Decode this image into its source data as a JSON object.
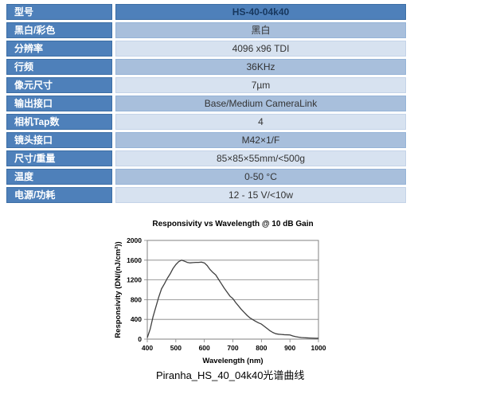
{
  "table": {
    "rows": [
      {
        "label": "型号",
        "value": "HS-40-04k40"
      },
      {
        "label": "黑白/彩色",
        "value": "黑白"
      },
      {
        "label": "分辨率",
        "value": "4096 x96 TDI"
      },
      {
        "label": "行频",
        "value": "36KHz"
      },
      {
        "label": "像元尺寸",
        "value": "7µm"
      },
      {
        "label": "输出接口",
        "value": "Base/Medium CameraLink"
      },
      {
        "label": "相机Tap数",
        "value": "4"
      },
      {
        "label": "镜头接口",
        "value": "M42×1/F"
      },
      {
        "label": "尺寸/重量",
        "value": "85×85×55mm/<500g"
      },
      {
        "label": "温度",
        "value": "0-50 °C"
      },
      {
        "label": "电源/功耗",
        "value": "12 - 15 V/<10w"
      }
    ],
    "colors": {
      "header_bg": "#4e80ba",
      "row_mid_bg": "#a8bfdc",
      "row_light_bg": "#d7e2f0",
      "label_text": "#ffffff",
      "header_value_text": "#17375e",
      "value_text": "#333333"
    }
  },
  "chart_caption": "Piranha_HS_40_04k40光谱曲线",
  "chart_data": {
    "type": "line",
    "title": "Responsivity vs Wavelength @ 10 dB Gain",
    "xlabel": "Wavelength (nm)",
    "ylabel": "Responsivity (DN/(nJ/cm²))",
    "xlim": [
      400,
      1000
    ],
    "ylim": [
      0,
      2000
    ],
    "x_ticks": [
      400,
      500,
      600,
      700,
      800,
      900,
      1000
    ],
    "y_ticks": [
      0,
      400,
      800,
      1200,
      1600,
      2000
    ],
    "grid": "horizontal",
    "legend": "none",
    "line_color": "#3f3f3f",
    "series": [
      {
        "name": "Responsivity",
        "x": [
          400,
          410,
          420,
          430,
          440,
          450,
          460,
          470,
          480,
          490,
          500,
          510,
          520,
          530,
          540,
          550,
          560,
          570,
          580,
          590,
          600,
          610,
          620,
          630,
          640,
          650,
          660,
          670,
          680,
          690,
          700,
          710,
          720,
          730,
          740,
          750,
          760,
          770,
          780,
          790,
          800,
          810,
          820,
          830,
          840,
          850,
          860,
          870,
          880,
          890,
          900,
          910,
          920,
          930,
          940,
          950,
          960,
          970,
          980,
          990,
          1000
        ],
        "y": [
          30,
          200,
          450,
          650,
          850,
          1020,
          1120,
          1230,
          1320,
          1430,
          1510,
          1570,
          1600,
          1580,
          1555,
          1545,
          1550,
          1555,
          1555,
          1560,
          1545,
          1490,
          1410,
          1350,
          1300,
          1210,
          1120,
          1030,
          950,
          870,
          820,
          740,
          670,
          600,
          540,
          480,
          430,
          395,
          360,
          330,
          305,
          260,
          215,
          170,
          135,
          110,
          100,
          95,
          90,
          88,
          85,
          65,
          50,
          40,
          32,
          28,
          25,
          22,
          20,
          18,
          18
        ]
      }
    ]
  }
}
